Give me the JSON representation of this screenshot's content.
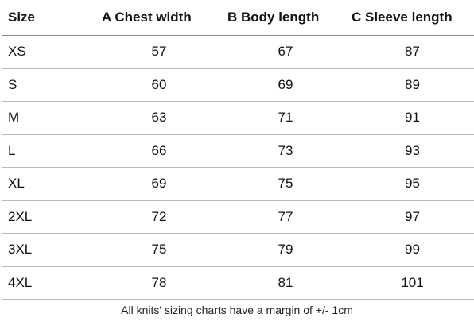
{
  "table": {
    "headers": {
      "size": "Size",
      "chest": "A Chest width",
      "body": "B Body length",
      "sleeve": "C Sleeve length"
    },
    "rows": [
      {
        "size": "XS",
        "chest": "57",
        "body": "67",
        "sleeve": "87"
      },
      {
        "size": "S",
        "chest": "60",
        "body": "69",
        "sleeve": "89"
      },
      {
        "size": "M",
        "chest": "63",
        "body": "71",
        "sleeve": "91"
      },
      {
        "size": "L",
        "chest": "66",
        "body": "73",
        "sleeve": "93"
      },
      {
        "size": "XL",
        "chest": "69",
        "body": "75",
        "sleeve": "95"
      },
      {
        "size": "2XL",
        "chest": "72",
        "body": "77",
        "sleeve": "97"
      },
      {
        "size": "3XL",
        "chest": "75",
        "body": "79",
        "sleeve": "99"
      },
      {
        "size": "4XL",
        "chest": "78",
        "body": "81",
        "sleeve": "101"
      }
    ]
  },
  "footnote": "All knits' sizing charts have a margin of +/- 1cm",
  "colors": {
    "text": "#111111",
    "header_rule": "#8c8c8c",
    "row_rule": "#bdbdbd"
  }
}
